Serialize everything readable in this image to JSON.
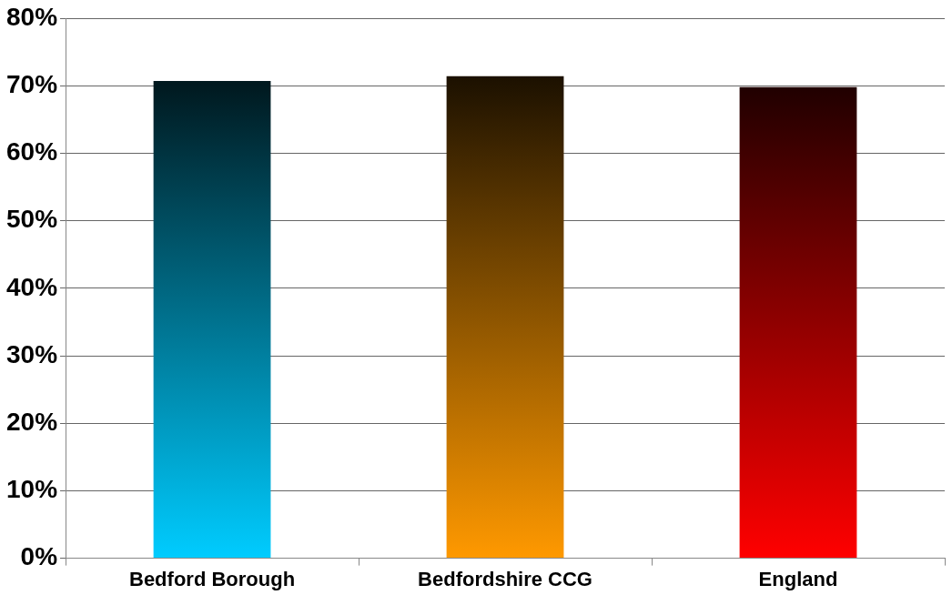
{
  "chart_data": {
    "type": "bar",
    "categories": [
      "Bedford Borough",
      "Bedfordshire CCG",
      "England"
    ],
    "values": [
      70.7,
      71.4,
      69.8
    ],
    "colors": [
      "#00ccff",
      "#ff9900",
      "#ff0000"
    ],
    "ylim": [
      0,
      80
    ],
    "yticks": [
      {
        "value": 0,
        "label": "0%"
      },
      {
        "value": 10,
        "label": "10%"
      },
      {
        "value": 20,
        "label": "20%"
      },
      {
        "value": 30,
        "label": "30%"
      },
      {
        "value": 40,
        "label": "40%"
      },
      {
        "value": 50,
        "label": "50%"
      },
      {
        "value": 60,
        "label": "60%"
      },
      {
        "value": 70,
        "label": "70%"
      },
      {
        "value": 80,
        "label": "80%"
      }
    ],
    "grid": "y",
    "legend": false
  }
}
